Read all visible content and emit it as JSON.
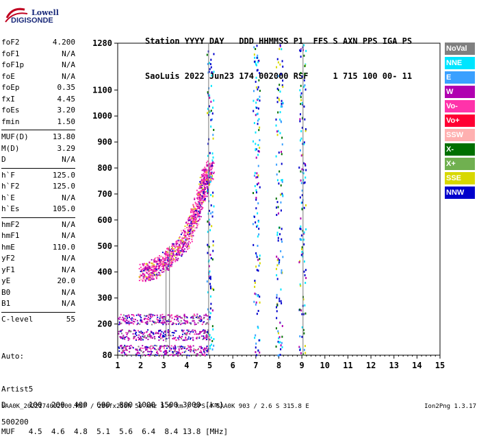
{
  "logo": {
    "line1": "Lowell",
    "line2": "DIGISONDE"
  },
  "header": {
    "labels": [
      "Station",
      "YYYY",
      "DAY",
      "DDD",
      "HHMMSS",
      "P1",
      "FFS",
      "S",
      "AXN",
      "PPS",
      "IGA",
      "PS"
    ],
    "line1": "Station YYYY DAY   DDD HHMMSS P1  FFS S AXN PPS IGA PS",
    "line2": "SaoLuis 2022 Jun23 174 002000 RSF     1 715 100 00- 11"
  },
  "params": {
    "group1": [
      {
        "name": "foF2",
        "value": "4.200"
      },
      {
        "name": "foF1",
        "value": "N/A"
      },
      {
        "name": "foF1p",
        "value": "N/A"
      },
      {
        "name": "foE",
        "value": "N/A"
      },
      {
        "name": "foEp",
        "value": "0.35"
      },
      {
        "name": "fxI",
        "value": "4.45"
      },
      {
        "name": "foEs",
        "value": "3.20"
      },
      {
        "name": "fmin",
        "value": "1.50"
      }
    ],
    "group2": [
      {
        "name": "MUF(D)",
        "value": "13.80"
      },
      {
        "name": "M(D)",
        "value": "3.29"
      },
      {
        "name": "D",
        "value": "N/A"
      }
    ],
    "group3": [
      {
        "name": "h`F",
        "value": "125.0"
      },
      {
        "name": "h`F2",
        "value": "125.0"
      },
      {
        "name": "h`E",
        "value": "N/A"
      },
      {
        "name": "h`Es",
        "value": "105.0"
      }
    ],
    "group4": [
      {
        "name": "hmF2",
        "value": "N/A"
      },
      {
        "name": "hmF1",
        "value": "N/A"
      },
      {
        "name": "hmE",
        "value": "110.0"
      },
      {
        "name": "yF2",
        "value": "N/A"
      },
      {
        "name": "yF1",
        "value": "N/A"
      },
      {
        "name": "yE",
        "value": "20.0"
      },
      {
        "name": "B0",
        "value": "N/A"
      },
      {
        "name": "B1",
        "value": "N/A"
      }
    ],
    "group5": [
      {
        "name": "C-level",
        "value": "55"
      }
    ]
  },
  "auto": {
    "line1": "Auto:",
    "line2": "Artist5",
    "line3": "500200"
  },
  "legend": [
    {
      "label": "NoVal",
      "color": "#808080"
    },
    {
      "label": "NNE",
      "color": "#00e5ff"
    },
    {
      "label": "E",
      "color": "#3aa0ff"
    },
    {
      "label": "W",
      "color": "#b000b0"
    },
    {
      "label": "Vo-",
      "color": "#ff33aa"
    },
    {
      "label": "Vo+",
      "color": "#ff0033"
    },
    {
      "label": "SSW",
      "color": "#ffb0b0"
    },
    {
      "label": "X-",
      "color": "#007000"
    },
    {
      "label": "X+",
      "color": "#70b050"
    },
    {
      "label": "SSE",
      "color": "#d8d800"
    },
    {
      "label": "NNW",
      "color": "#0000cc"
    }
  ],
  "tables": {
    "d_row": "D     100  200  400  600  800 1000 1500 3000 [km]",
    "muf_row": "MUF   4.5  4.6  4.8  5.1  5.6  6.4  8.4 13.8 [MHz]"
  },
  "footer": {
    "left": "SAA0K_2022174002000.RSF / 280fx256h 50 kHz 5.0 km / DPS-4 SAA0K 903 / 2.6 S 315.8 E",
    "right": "Ion2Png 1.3.17"
  },
  "chart_data": {
    "type": "scatter",
    "xlim": [
      1,
      15
    ],
    "ylim": [
      80,
      1280
    ],
    "xticks": [
      "1",
      "2",
      "3",
      "4",
      "5",
      "6",
      "7",
      "8",
      "9",
      "10",
      "11",
      "12",
      "13",
      "14",
      "15"
    ],
    "yticks": [
      "80",
      "200",
      "300",
      "400",
      "500",
      "600",
      "700",
      "800",
      "900",
      "1000",
      "1100",
      "1280"
    ],
    "grid": false,
    "legend_position": "right",
    "traces": {
      "main_band": [
        {
          "f": 2.0,
          "h": 395
        },
        {
          "f": 2.5,
          "h": 410
        },
        {
          "f": 3.0,
          "h": 440
        },
        {
          "f": 3.5,
          "h": 480
        },
        {
          "f": 4.0,
          "h": 540
        },
        {
          "f": 4.3,
          "h": 610
        },
        {
          "f": 4.6,
          "h": 700
        },
        {
          "f": 4.8,
          "h": 760
        },
        {
          "f": 5.0,
          "h": 800
        }
      ],
      "echo_line_mhz": [
        5.0,
        7.0,
        8.0,
        9.0
      ],
      "low_layer_h": [
        100,
        160,
        220
      ]
    }
  }
}
